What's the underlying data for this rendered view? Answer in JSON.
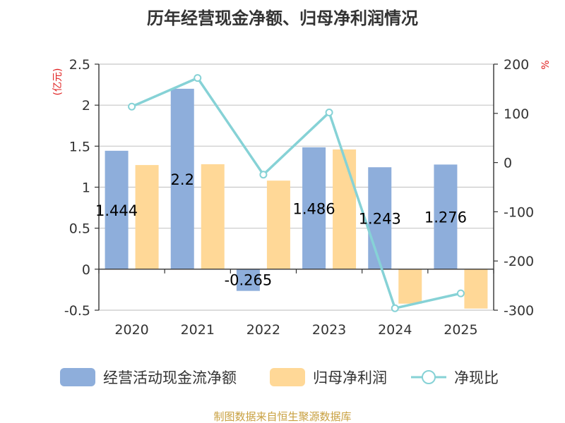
{
  "chart_data": {
    "type": "bar",
    "title": "历年经营现金净额、归母净利润情况",
    "categories": [
      "2020",
      "2021",
      "2022",
      "2023",
      "2024",
      "2025"
    ],
    "series": [
      {
        "name": "经营活动现金流净额",
        "type": "bar",
        "axis": "left",
        "color": "#8eaedb",
        "values": [
          1.444,
          2.2,
          -0.265,
          1.486,
          1.243,
          1.276
        ],
        "labels": [
          "1.444",
          "2.2",
          "-0.265",
          "1.486",
          "1.243",
          "1.276"
        ]
      },
      {
        "name": "归母净利润",
        "type": "bar",
        "axis": "left",
        "color": "#ffd897",
        "values": [
          1.27,
          1.28,
          1.08,
          1.46,
          -0.42,
          -0.48
        ]
      },
      {
        "name": "净现比",
        "type": "line",
        "axis": "right",
        "color": "#86d2d6",
        "values": [
          113.7,
          171.9,
          -24.5,
          101.8,
          -296.0,
          -265.8
        ]
      }
    ],
    "left_axis": {
      "unit": "(亿元)",
      "ylim": [
        -0.5,
        2.5
      ],
      "ticks": [
        2.5,
        2,
        1.5,
        1,
        0.5,
        0,
        -0.5
      ],
      "tick_labels": [
        "2.5",
        "2",
        "1.5",
        "1",
        "0.5",
        "0",
        "-0.5"
      ]
    },
    "right_axis": {
      "unit": "%",
      "ylim": [
        -300,
        200
      ],
      "ticks": [
        200,
        100,
        0,
        -100,
        -200,
        -300
      ],
      "tick_labels": [
        "200",
        "100",
        "0",
        "-100",
        "-200",
        "-300"
      ]
    },
    "grid": true,
    "legend_position": "bottom",
    "source": "制图数据来自恒生聚源数据库"
  }
}
